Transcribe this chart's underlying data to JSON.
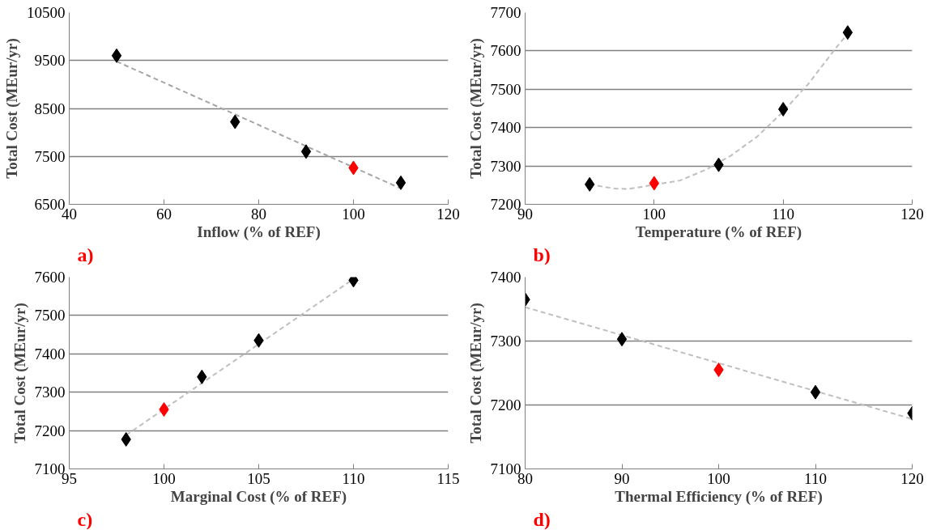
{
  "chart_data": [
    {
      "type": "scatter",
      "xlabel": "Inflow (% of REF)",
      "ylabel": "Total Cost (MEur/yr)",
      "annotations": [
        "a)"
      ],
      "xlim": [
        40,
        120
      ],
      "xticks": [
        40,
        60,
        80,
        100,
        120
      ],
      "ylim": [
        6500,
        10500
      ],
      "yticks": [
        6500,
        7500,
        8500,
        9500,
        10500
      ],
      "grid": "y",
      "marker": "diamond",
      "series": [
        {
          "type": "line",
          "color": "#a6a6a6",
          "line_style": "dashed",
          "marker": "none",
          "x": [
            50,
            110
          ],
          "values": [
            9480,
            6830
          ]
        },
        {
          "color": "#000000",
          "x": [
            50,
            75,
            90,
            110
          ],
          "values": [
            9600,
            8220,
            7600,
            6950
          ]
        },
        {
          "color": "#ff0000",
          "x": [
            100
          ],
          "values": [
            7260
          ]
        }
      ]
    },
    {
      "type": "scatter",
      "xlabel": "Temperature (% of REF)",
      "ylabel": "Total Cost (MEur/yr)",
      "annotations": [
        "b)"
      ],
      "xlim": [
        90,
        120
      ],
      "xticks": [
        90,
        100,
        110,
        120
      ],
      "ylim": [
        7200,
        7700
      ],
      "yticks": [
        7200,
        7300,
        7400,
        7500,
        7600,
        7700
      ],
      "grid": "y",
      "marker": "diamond",
      "series": [
        {
          "type": "line",
          "color": "#bfbfbf",
          "line_style": "dashed",
          "marker": "none",
          "x": [
            95,
            96,
            97,
            98,
            102,
            104,
            106,
            108,
            110,
            112,
            114,
            115
          ],
          "values": [
            7253,
            7246,
            7241,
            7240,
            7262,
            7290,
            7328,
            7377,
            7442,
            7516,
            7604,
            7645
          ]
        },
        {
          "color": "#000000",
          "x": [
            95,
            105,
            110,
            115
          ],
          "values": [
            7252,
            7303,
            7448,
            7648
          ]
        },
        {
          "color": "#ff0000",
          "x": [
            100
          ],
          "values": [
            7255
          ]
        }
      ]
    },
    {
      "type": "scatter",
      "xlabel": "Marginal Cost (% of REF)",
      "ylabel": "Total Cost (MEur/yr)",
      "annotations": [
        "c)"
      ],
      "xlim": [
        95,
        115
      ],
      "xticks": [
        95,
        100,
        105,
        110,
        115
      ],
      "ylim": [
        7100,
        7600
      ],
      "yticks": [
        7100,
        7200,
        7300,
        7400,
        7500,
        7600
      ],
      "grid": "y",
      "marker": "diamond",
      "series": [
        {
          "type": "line",
          "color": "#bfbfbf",
          "line_style": "dashed",
          "marker": "none",
          "x": [
            98,
            110
          ],
          "values": [
            7188,
            7595
          ]
        },
        {
          "color": "#000000",
          "x": [
            98,
            102,
            105,
            110
          ],
          "values": [
            7177,
            7340,
            7435,
            7592
          ]
        },
        {
          "color": "#ff0000",
          "x": [
            100
          ],
          "values": [
            7255
          ]
        }
      ]
    },
    {
      "type": "scatter",
      "xlabel": "Thermal Efficiency (% of REF)",
      "ylabel": "Total Cost (MEur/yr)",
      "annotations": [
        "d)"
      ],
      "xlim": [
        80,
        120
      ],
      "xticks": [
        80,
        90,
        100,
        110,
        120
      ],
      "ylim": [
        7100,
        7400
      ],
      "yticks": [
        7100,
        7200,
        7300,
        7400
      ],
      "grid": "y",
      "marker": "diamond",
      "series": [
        {
          "type": "line",
          "color": "#bfbfbf",
          "line_style": "dashed",
          "marker": "none",
          "x": [
            80,
            120
          ],
          "values": [
            7353,
            7178
          ]
        },
        {
          "color": "#000000",
          "x": [
            80,
            90,
            110,
            120
          ],
          "values": [
            7365,
            7303,
            7220,
            7187
          ]
        },
        {
          "color": "#ff0000",
          "x": [
            100
          ],
          "values": [
            7255
          ]
        }
      ]
    }
  ]
}
